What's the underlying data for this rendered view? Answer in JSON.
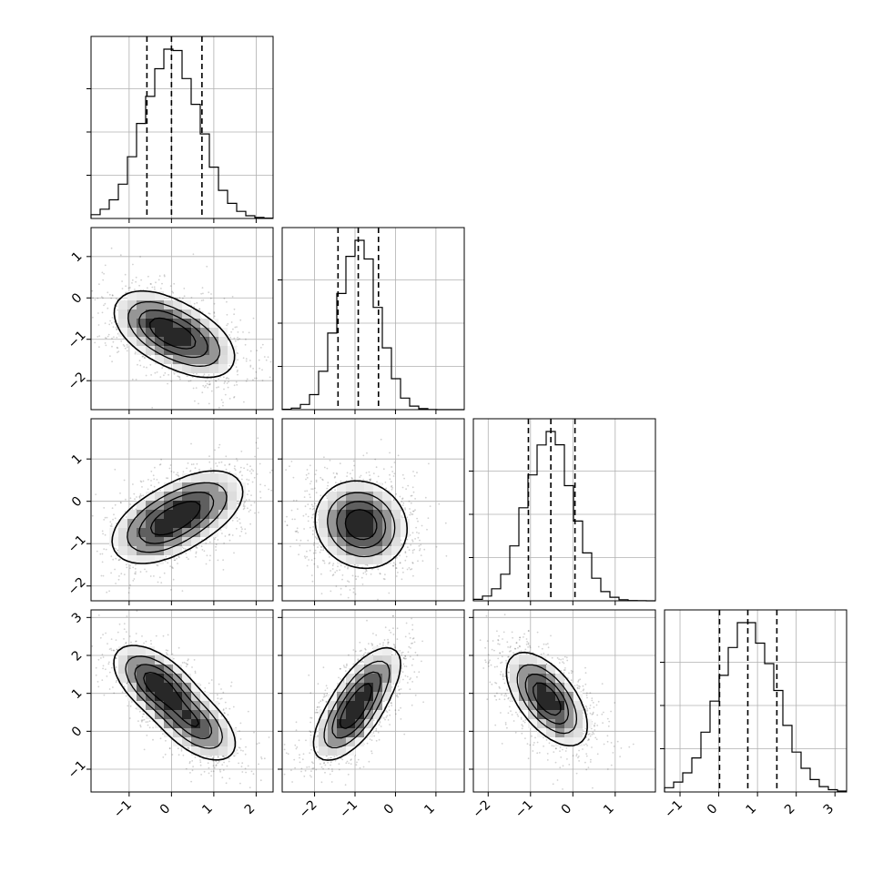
{
  "chart_data": {
    "type": "corner",
    "title": "",
    "n_params": 4,
    "grid": true,
    "histogram_style": "step",
    "scatter_color": "#000000",
    "contour_color": "#000000",
    "quantile_line_style": "dashed",
    "params": [
      {
        "xlim": [
          -1.9,
          2.4
        ],
        "ylim_2d": [
          -2.7,
          1.7
        ],
        "ticks": [
          -1,
          0,
          1,
          2
        ],
        "tick_labels": [
          "−1",
          "0",
          "1",
          "2"
        ],
        "hist_mode": 0.0,
        "hist_sd": 0.65,
        "hist_peak": 1.0,
        "quantiles": [
          -0.58,
          0.0,
          0.72
        ]
      },
      {
        "xlim": [
          -2.8,
          1.7
        ],
        "ylim_2d": [
          -2.7,
          1.7
        ],
        "ticks": [
          -2,
          -1,
          0,
          1
        ],
        "tick_labels": [
          "−2",
          "−1",
          "0",
          "1"
        ],
        "hist_mode": -0.92,
        "hist_sd": 0.5,
        "hist_peak": 1.0,
        "quantiles": [
          -1.42,
          -0.92,
          -0.42
        ]
      },
      {
        "xlim": [
          -2.35,
          1.95
        ],
        "ylim_2d": [
          -2.35,
          1.95
        ],
        "ticks": [
          -2,
          -1,
          0,
          1
        ],
        "tick_labels": [
          "−2",
          "−1",
          "0",
          "1"
        ],
        "hist_mode": -0.55,
        "hist_sd": 0.55,
        "hist_peak": 1.0,
        "quantiles": [
          -1.05,
          -0.52,
          0.05
        ]
      },
      {
        "xlim": [
          -1.4,
          3.3
        ],
        "ylim_2d": [
          -1.6,
          3.2
        ],
        "ticks": [
          -1,
          0,
          1,
          2,
          3
        ],
        "tick_labels": [
          "−1",
          "0",
          "1",
          "2",
          "3"
        ],
        "hist_mode": 0.75,
        "hist_sd": 0.75,
        "hist_peak": 1.0,
        "quantiles": [
          0.02,
          0.75,
          1.5
        ]
      }
    ],
    "pairs": [
      {
        "row": 1,
        "col": 0,
        "centers": [
          [
            -0.3,
            -0.7
          ],
          [
            0.5,
            -1.1
          ]
        ],
        "sd": [
          0.55,
          0.45
        ],
        "rho": -0.4
      },
      {
        "row": 2,
        "col": 0,
        "centers": [
          [
            -0.25,
            -0.6
          ],
          [
            0.6,
            -0.1
          ]
        ],
        "sd": [
          0.6,
          0.45
        ],
        "rho": 0.4
      },
      {
        "row": 2,
        "col": 1,
        "centers": [
          [
            -0.85,
            -0.55
          ]
        ],
        "sd": [
          0.55,
          0.5
        ],
        "rho": -0.1
      },
      {
        "row": 3,
        "col": 0,
        "centers": [
          [
            -0.35,
            1.25
          ],
          [
            0.55,
            0.2
          ]
        ],
        "sd": [
          0.5,
          0.5
        ],
        "rho": -0.55
      },
      {
        "row": 3,
        "col": 1,
        "centers": [
          [
            -1.15,
            0.3
          ],
          [
            -0.7,
            1.2
          ]
        ],
        "sd": [
          0.45,
          0.55
        ],
        "rho": 0.6
      },
      {
        "row": 3,
        "col": 2,
        "centers": [
          [
            -0.7,
            1.05
          ],
          [
            -0.5,
            0.6
          ]
        ],
        "sd": [
          0.45,
          0.55
        ],
        "rho": -0.55
      }
    ]
  }
}
